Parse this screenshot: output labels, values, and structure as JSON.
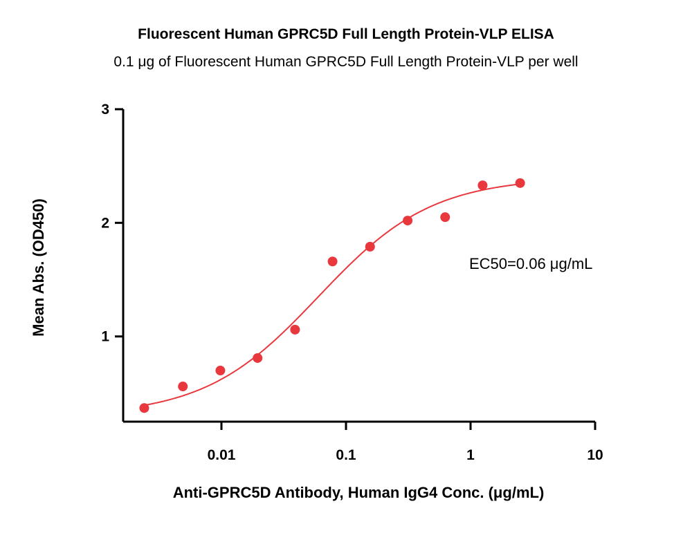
{
  "chart_data": {
    "type": "scatter",
    "title": "Fluorescent Human GPRC5D Full Length Protein-VLP ELISA",
    "subtitle": "0.1 μg of Fluorescent Human GPRC5D Full Length Protein-VLP per well",
    "xlabel": "Anti-GPRC5D Antibody, Human IgG4 Conc. (μg/mL)",
    "ylabel": "Mean Abs. (OD450)",
    "x_scale": "log",
    "xlim": [
      0.002,
      10
    ],
    "ylim": [
      0.25,
      3
    ],
    "x_ticks": [
      {
        "value": 0.01,
        "label": "0.01"
      },
      {
        "value": 0.1,
        "label": "0.1"
      },
      {
        "value": 1,
        "label": "1"
      },
      {
        "value": 10,
        "label": "10"
      }
    ],
    "y_ticks": [
      {
        "value": 1,
        "label": "1"
      },
      {
        "value": 2,
        "label": "2"
      },
      {
        "value": 3,
        "label": "3"
      }
    ],
    "series": [
      {
        "color": "#e8383d",
        "points": [
          {
            "x": 0.0024,
            "y": 0.37
          },
          {
            "x": 0.0049,
            "y": 0.56
          },
          {
            "x": 0.0098,
            "y": 0.7
          },
          {
            "x": 0.0195,
            "y": 0.81
          },
          {
            "x": 0.039,
            "y": 1.06
          },
          {
            "x": 0.078,
            "y": 1.66
          },
          {
            "x": 0.156,
            "y": 1.79
          },
          {
            "x": 0.3125,
            "y": 2.02
          },
          {
            "x": 0.625,
            "y": 2.05
          },
          {
            "x": 1.25,
            "y": 2.33
          },
          {
            "x": 2.5,
            "y": 2.35
          }
        ],
        "fit": {
          "model": "4PL",
          "bottom": 0.3,
          "top": 2.4,
          "ec50": 0.06,
          "hill": 0.95
        }
      }
    ],
    "annotations": [
      "EC50=0.06 μg/mL"
    ],
    "grid": false,
    "legend": "none"
  }
}
